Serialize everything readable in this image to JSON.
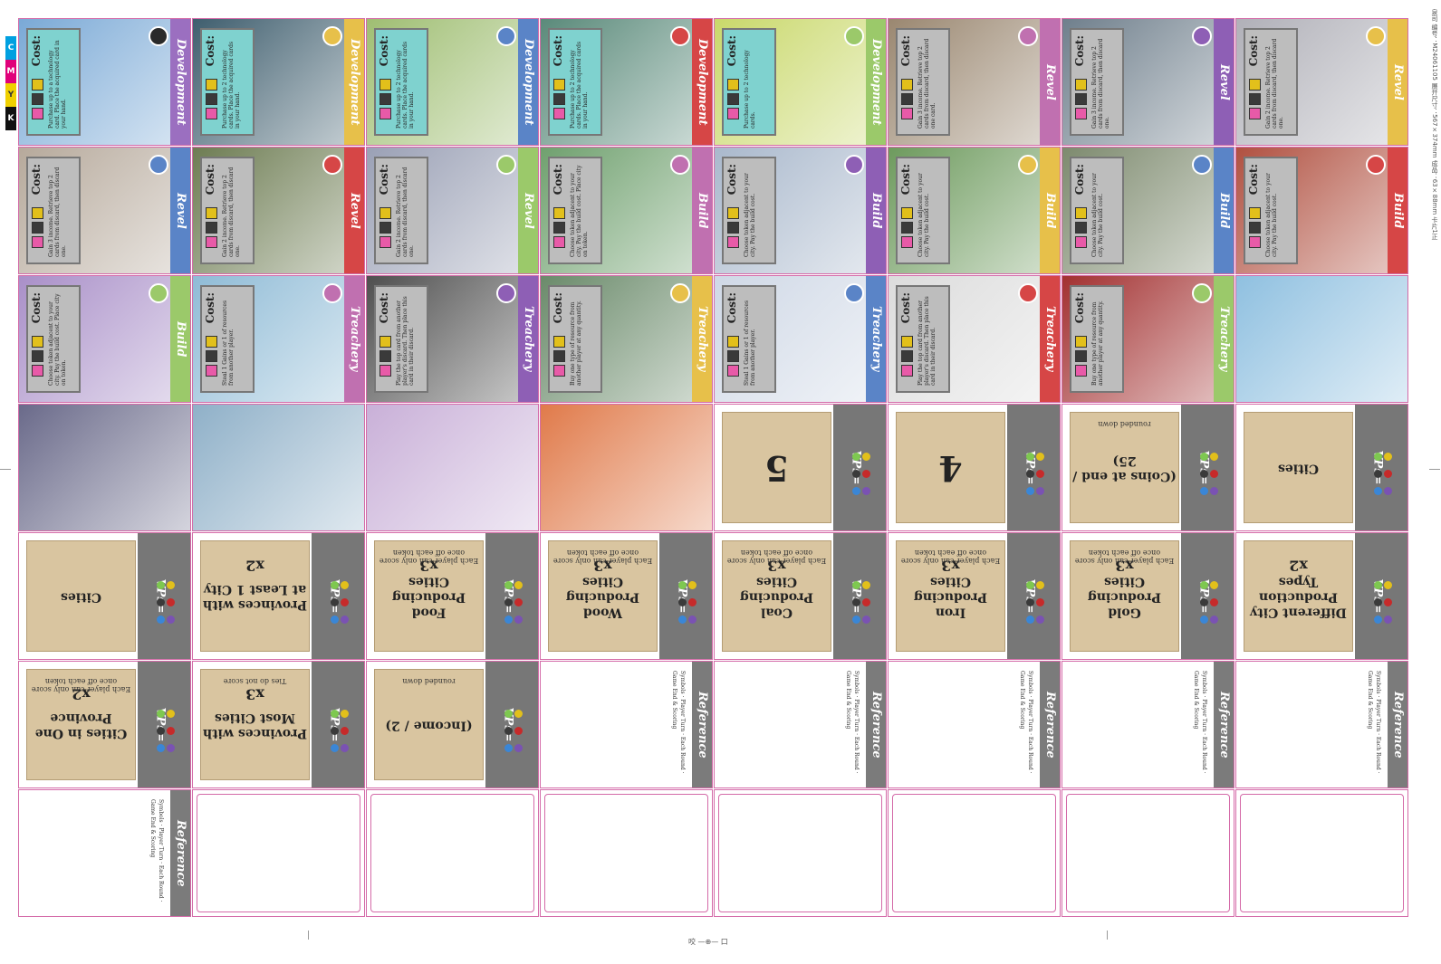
{
  "sheet": {
    "side_text": "泉司 编号：M24061105 展开尺寸：567×374mm 成品：63×88mm 卡片1正",
    "bottom_center": "咬 —⊕— 口"
  },
  "icons": {
    "production_colors": {
      "food": "#7ec850",
      "wood": "#e2c01b",
      "coal": "#3a3a3a",
      "iron": "#c62a2a",
      "gold": "#3a86d6",
      "other": "#7a52b3"
    }
  },
  "rows": [
    {
      "row_type": "development",
      "cards": [
        {
          "kind": "tech",
          "band_label": "Development",
          "band_color": "#9b6fc0",
          "emblem": "#2a2a2a",
          "cost_label": "Cost:",
          "panel": "teal",
          "text": "Purchase up to a technology card. Place the acquired card in your hand.",
          "art": "#7aa9d6"
        },
        {
          "kind": "tech",
          "band_label": "Development",
          "band_color": "#e7c04a",
          "emblem": "#e7c04a",
          "cost_label": "Cost:",
          "panel": "teal",
          "text": "Purchase up to 2 technology cards. Place the acquired cards in your hand.",
          "art": "#3f5e6e"
        },
        {
          "kind": "tech",
          "band_label": "Development",
          "band_color": "#5a84c7",
          "emblem": "#5a84c7",
          "cost_label": "Cost:",
          "panel": "teal",
          "text": "Purchase up to 2 technology cards. Place the acquired cards in your hand.",
          "art": "#9fbe72"
        },
        {
          "kind": "tech",
          "band_label": "Development",
          "band_color": "#d64646",
          "emblem": "#d64646",
          "cost_label": "Cost:",
          "panel": "teal",
          "text": "Purchase up to 2 technology cards. Place the acquired cards in your hand.",
          "art": "#5a8a7a"
        },
        {
          "kind": "tech",
          "band_label": "Development",
          "band_color": "#9bc96a",
          "emblem": "#9bc96a",
          "cost_label": "Cost:",
          "panel": "teal",
          "text": "Purchase up to 2 technology cards.",
          "art": "#c9d86a"
        },
        {
          "kind": "tech",
          "band_label": "Revel",
          "band_color": "#c070b0",
          "emblem": "#c070b0",
          "cost_label": "Cost:",
          "panel": "grey",
          "text": "Gain 3 income. Retrieve top 2 cards from discard, then discard one card.",
          "art": "#9a8770"
        },
        {
          "kind": "tech",
          "band_label": "Revel",
          "band_color": "#8e5fb5",
          "emblem": "#8e5fb5",
          "cost_label": "Cost:",
          "panel": "grey",
          "text": "Gain 3 income. Retrieve top 2 cards from discard, then discard one.",
          "art": "#6f7f8c"
        },
        {
          "kind": "tech",
          "band_label": "Revel",
          "band_color": "#e7c04a",
          "emblem": "#e7c04a",
          "cost_label": "Cost:",
          "panel": "grey",
          "text": "Gain 2 income. Retrieve top 2 cards from discard, then discard one.",
          "art": "#b0b0b8"
        }
      ]
    },
    {
      "row_type": "revel_build",
      "cards": [
        {
          "kind": "tech",
          "band_label": "Revel",
          "band_color": "#5a84c7",
          "emblem": "#5a84c7",
          "cost_label": "Cost:",
          "panel": "grey",
          "text": "Gain 3 income. Retrieve top 2 cards from discard, then discard one.",
          "art": "#b6a99b"
        },
        {
          "kind": "tech",
          "band_label": "Revel",
          "band_color": "#d64646",
          "emblem": "#d64646",
          "cost_label": "Cost:",
          "panel": "grey",
          "text": "Gain 2 income. Retrieve top 2 cards from discard, then discard one.",
          "art": "#6d7c52"
        },
        {
          "kind": "tech",
          "band_label": "Revel",
          "band_color": "#9bc96a",
          "emblem": "#9bc96a",
          "cost_label": "Cost:",
          "panel": "grey",
          "text": "Gain 2 income. Retrieve top 2 cards from discard, then discard one.",
          "art": "#9aa0b5"
        },
        {
          "kind": "tech",
          "band_label": "Build",
          "band_color": "#c070b0",
          "emblem": "#c070b0",
          "cost_label": "Cost:",
          "panel": "grey",
          "text": "Choose token adjacent to your city. Pay the build cost. Place city on token.",
          "art": "#6fa06e"
        },
        {
          "kind": "tech",
          "band_label": "Build",
          "band_color": "#8e5fb5",
          "emblem": "#8e5fb5",
          "cost_label": "Cost:",
          "panel": "grey",
          "text": "Choose token adjacent to your city. Pay the build cost.",
          "art": "#a9b8cc"
        },
        {
          "kind": "tech",
          "band_label": "Build",
          "band_color": "#e7c04a",
          "emblem": "#e7c04a",
          "cost_label": "Cost:",
          "panel": "grey",
          "text": "Choose token adjacent to your city. Pay the build cost.",
          "art": "#6d9a5d"
        },
        {
          "kind": "tech",
          "band_label": "Build",
          "band_color": "#5a84c7",
          "emblem": "#5a84c7",
          "cost_label": "Cost:",
          "panel": "grey",
          "text": "Choose token adjacent to your city. Pay the build cost.",
          "art": "#7d8a6e"
        },
        {
          "kind": "tech",
          "band_label": "Build",
          "band_color": "#d64646",
          "emblem": "#d64646",
          "cost_label": "Cost:",
          "panel": "grey",
          "text": "Choose token adjacent to your city. Pay the build cost.",
          "art": "#b05040"
        }
      ]
    },
    {
      "row_type": "build_treachery",
      "cards": [
        {
          "kind": "tech",
          "band_label": "Build",
          "band_color": "#9bc96a",
          "emblem": "#9bc96a",
          "cost_label": "Cost:",
          "panel": "grey",
          "text": "Choose token adjacent to your city. Pay the build cost. Place city on token.",
          "art": "#a98fc8"
        },
        {
          "kind": "tech",
          "band_label": "Treachery",
          "band_color": "#c070b0",
          "emblem": "#c070b0",
          "cost_label": "Cost:",
          "panel": "grey",
          "text": "Steal 1 Gains or 1 of resources from another player.",
          "art": "#8fbbd6"
        },
        {
          "kind": "tech",
          "band_label": "Treachery",
          "band_color": "#8e5fb5",
          "emblem": "#8e5fb5",
          "cost_label": "Cost:",
          "panel": "grey",
          "text": "Play the top card from another player's discard. Then place this card in their discard.",
          "art": "#4f4f4f"
        },
        {
          "kind": "tech",
          "band_label": "Treachery",
          "band_color": "#e7c04a",
          "emblem": "#e7c04a",
          "cost_label": "Cost:",
          "panel": "grey",
          "text": "Buy one type of resource from another player at any quantity.",
          "art": "#6a8a6a"
        },
        {
          "kind": "tech",
          "band_label": "Treachery",
          "band_color": "#5a84c7",
          "emblem": "#5a84c7",
          "cost_label": "Cost:",
          "panel": "grey",
          "text": "Steal 1 Gains or 1 of resources from another player.",
          "art": "#cfd8e6"
        },
        {
          "kind": "tech",
          "band_label": "Treachery",
          "band_color": "#d64646",
          "emblem": "#d64646",
          "cost_label": "Cost:",
          "panel": "grey",
          "text": "Play the top card from another player's discard. Then place this card in their discard.",
          "art": "#dcdcdc"
        },
        {
          "kind": "tech",
          "band_label": "Treachery",
          "band_color": "#9bc96a",
          "emblem": "#9bc96a",
          "cost_label": "Cost:",
          "panel": "grey",
          "text": "Buy one type of resource from another player at any quantity.",
          "art": "#a23030"
        },
        {
          "kind": "art",
          "art": "#8fc0e0"
        }
      ]
    },
    {
      "row_type": "art_vp",
      "cards": [
        {
          "kind": "art",
          "art": "#6a6a8a"
        },
        {
          "kind": "art",
          "art": "#8fb0c8"
        },
        {
          "kind": "art",
          "art": "#c9b0d8"
        },
        {
          "kind": "art",
          "art": "#e07a4a"
        },
        {
          "kind": "vp_big",
          "vp_label": "VPs=",
          "big": "5"
        },
        {
          "kind": "vp_big",
          "vp_label": "VPs=",
          "big": "4"
        },
        {
          "kind": "vp",
          "vp_label": "VPs=",
          "title": "(Coins at end / 25)",
          "note": "rounded down"
        },
        {
          "kind": "vp",
          "vp_label": "VPs=",
          "title": "Cities",
          "note": ""
        }
      ]
    },
    {
      "row_type": "vp",
      "cards": [
        {
          "kind": "vp",
          "vp_label": "VPs=",
          "title": "Cities",
          "note": ""
        },
        {
          "kind": "vp",
          "vp_label": "VPs=",
          "title": "Provinces with at Least 1 City",
          "mult": "x2",
          "note": ""
        },
        {
          "kind": "vp",
          "vp_label": "VPs=",
          "title": "Food Producing Cities",
          "mult": "x3",
          "note": "Each player can only score once off each token"
        },
        {
          "kind": "vp",
          "vp_label": "VPs=",
          "title": "Wood Producing Cities",
          "mult": "x3",
          "note": "Each player can only score once off each token"
        },
        {
          "kind": "vp",
          "vp_label": "VPs=",
          "title": "Coal Producing Cities",
          "mult": "x3",
          "note": "Each player can only score once off each token"
        },
        {
          "kind": "vp",
          "vp_label": "VPs=",
          "title": "Iron Producing Cities",
          "mult": "x3",
          "note": "Each player can only score once off each token"
        },
        {
          "kind": "vp",
          "vp_label": "VPs=",
          "title": "Gold Producing Cities",
          "mult": "x3",
          "note": "Each player can only score once off each token"
        },
        {
          "kind": "vp",
          "vp_label": "VPs=",
          "title": "Different City Production Types",
          "mult": "x2",
          "note": ""
        }
      ]
    },
    {
      "row_type": "vp_reference",
      "cards": [
        {
          "kind": "vp",
          "vp_label": "VPs=",
          "title": "Cities in One Province",
          "mult": "x2",
          "note": "Each player can only score once off each token"
        },
        {
          "kind": "vp",
          "vp_label": "VPs=",
          "title": "Provinces with Most Cities",
          "mult": "x3",
          "note": "Ties do not score"
        },
        {
          "kind": "vp",
          "vp_label": "VPs=",
          "title": "(Income / 2)",
          "note": "rounded down"
        },
        {
          "kind": "ref",
          "band_label": "Reference",
          "text": "Symbols · Player Turn · Each Round · Game End & Scoring"
        },
        {
          "kind": "ref",
          "band_label": "Reference",
          "text": "Symbols · Player Turn · Each Round · Game End & Scoring"
        },
        {
          "kind": "ref",
          "band_label": "Reference",
          "text": "Symbols · Player Turn · Each Round · Game End & Scoring"
        },
        {
          "kind": "ref",
          "band_label": "Reference",
          "text": "Symbols · Player Turn · Each Round · Game End & Scoring"
        },
        {
          "kind": "ref",
          "band_label": "Reference",
          "text": "Symbols · Player Turn · Each Round · Game End & Scoring"
        }
      ]
    },
    {
      "row_type": "reference_blank",
      "cards": [
        {
          "kind": "ref",
          "band_label": "Reference",
          "text": "Symbols · Player Turn · Each Round · Game End & Scoring"
        },
        {
          "kind": "blank"
        },
        {
          "kind": "blank"
        },
        {
          "kind": "blank"
        },
        {
          "kind": "blank"
        },
        {
          "kind": "blank"
        },
        {
          "kind": "blank"
        },
        {
          "kind": "blank"
        }
      ]
    }
  ]
}
